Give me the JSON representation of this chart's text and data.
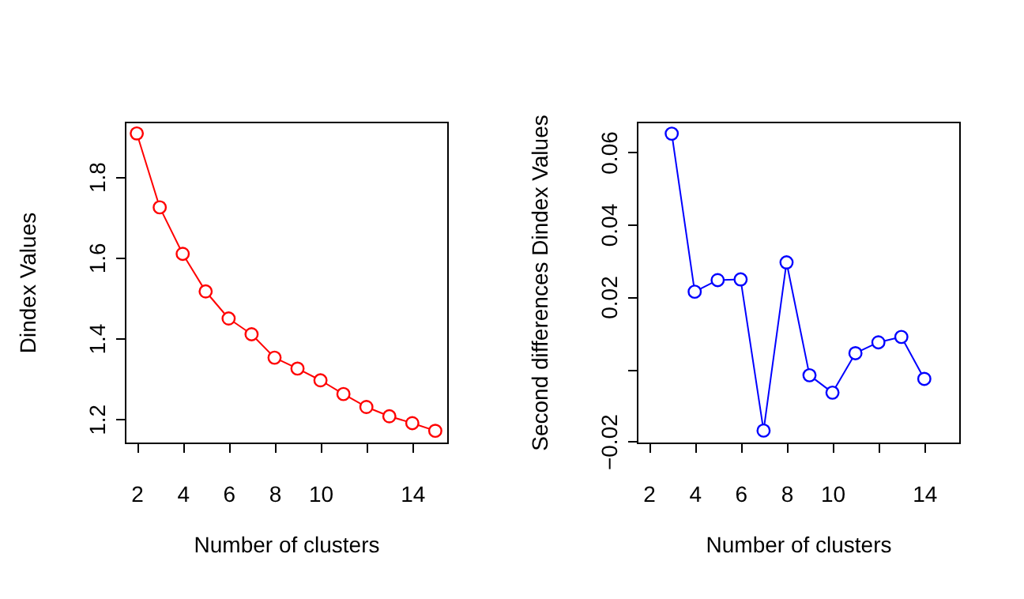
{
  "chart_data": [
    {
      "type": "line",
      "xlabel": "Number of clusters",
      "ylabel": "Dindex Values",
      "x": [
        2,
        3,
        4,
        5,
        6,
        7,
        8,
        9,
        10,
        11,
        12,
        13,
        14,
        15
      ],
      "series": [
        {
          "color": "#ff0000",
          "values": [
            1.907,
            1.724,
            1.609,
            1.516,
            1.449,
            1.41,
            1.352,
            1.325,
            1.296,
            1.262,
            1.23,
            1.207,
            1.19,
            1.171
          ]
        }
      ],
      "xlim": [
        1.48,
        15.52
      ],
      "xticks": [
        2,
        4,
        6,
        8,
        10,
        {
          "value": 12,
          "label": null
        },
        14
      ],
      "ylim": [
        1.142,
        1.936
      ],
      "yticks": [
        1.2,
        1.4,
        1.6,
        1.8
      ],
      "grid": false,
      "marker": "circle",
      "line_style": "solid"
    },
    {
      "type": "line",
      "xlabel": "Number of clusters",
      "ylabel": "Second differences Dindex Values",
      "x": [
        3,
        4,
        5,
        6,
        7,
        8,
        9,
        10,
        11,
        12,
        13,
        14
      ],
      "series": [
        {
          "color": "#0000ff",
          "values": [
            0.0651,
            0.0214,
            0.0246,
            0.0248,
            -0.017,
            0.0295,
            -0.0017,
            -0.0065,
            0.0044,
            0.0074,
            0.0089,
            -0.0027
          ]
        }
      ],
      "xlim": [
        1.48,
        15.52
      ],
      "xticks": [
        2,
        4,
        6,
        8,
        10,
        {
          "value": 12,
          "label": null
        },
        14
      ],
      "ylim": [
        -0.0203,
        0.0684
      ],
      "yticks": [
        -0.02,
        {
          "value": 0,
          "label": null
        },
        0.02,
        0.04,
        0.06
      ],
      "grid": false,
      "marker": "circle",
      "line_style": "solid"
    }
  ]
}
